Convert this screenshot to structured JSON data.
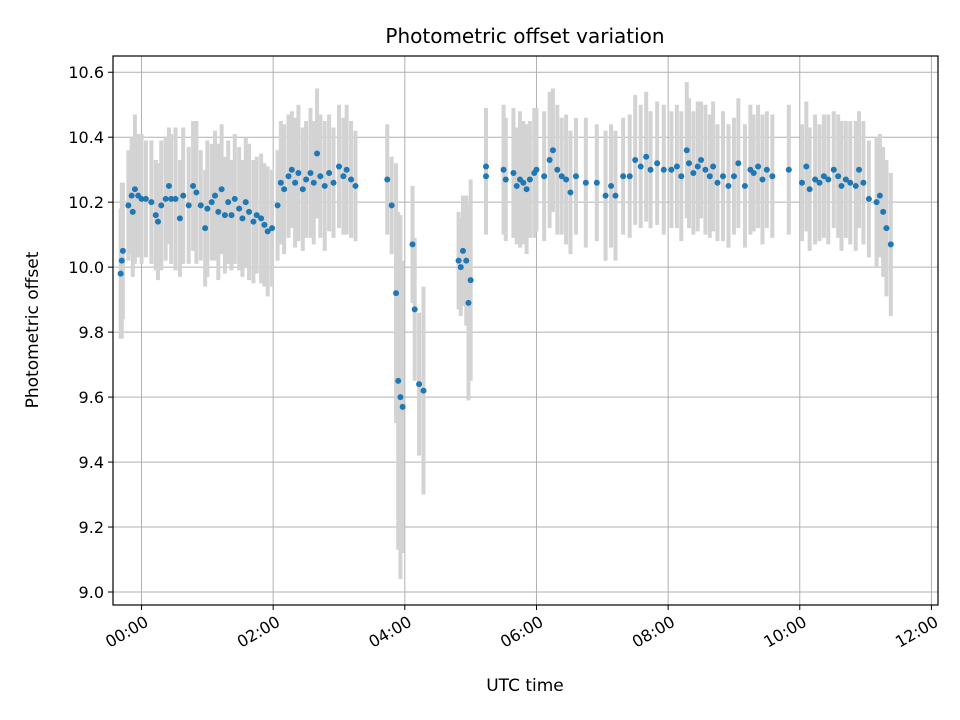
{
  "chart_data": {
    "type": "scatter",
    "title": "Photometric offset variation",
    "xlabel": "UTC time",
    "ylabel": "Photometric offset",
    "x_axis_kind": "time (hours)",
    "xlim": [
      "23:34",
      "12:06"
    ],
    "ylim": [
      8.96,
      10.65
    ],
    "x_ticks": [
      "00:00",
      "02:00",
      "04:00",
      "06:00",
      "08:00",
      "10:00",
      "12:00"
    ],
    "y_ticks": [
      "9.0",
      "9.2",
      "9.4",
      "9.6",
      "9.8",
      "10.0",
      "10.2",
      "10.4",
      "10.6"
    ],
    "grid": true,
    "legend": "none",
    "colors": {
      "points": "#1f77b4",
      "error_bars": "#d3d3d3",
      "grid": "#b0b0b0"
    },
    "series": [
      {
        "points": [
          {
            "x": "23:41",
            "y": 9.98,
            "err": 0.2
          },
          {
            "x": "23:42",
            "y": 10.02,
            "err": 0.24
          },
          {
            "x": "23:43",
            "y": 10.05,
            "err": 0.21
          },
          {
            "x": "23:48",
            "y": 10.19,
            "err": 0.17
          },
          {
            "x": "23:51",
            "y": 10.22,
            "err": 0.18
          },
          {
            "x": "23:52",
            "y": 10.17,
            "err": 0.2
          },
          {
            "x": "23:54",
            "y": 10.24,
            "err": 0.23
          },
          {
            "x": "23:57",
            "y": 10.22,
            "err": 0.19
          },
          {
            "x": "00:00",
            "y": 10.21,
            "err": 0.2
          },
          {
            "x": "00:04",
            "y": 10.21,
            "err": 0.18
          },
          {
            "x": "00:09",
            "y": 10.2,
            "err": 0.19
          },
          {
            "x": "00:13",
            "y": 10.16,
            "err": 0.17
          },
          {
            "x": "00:15",
            "y": 10.14,
            "err": 0.18
          },
          {
            "x": "00:18",
            "y": 10.19,
            "err": 0.2
          },
          {
            "x": "00:22",
            "y": 10.21,
            "err": 0.19
          },
          {
            "x": "00:25",
            "y": 10.25,
            "err": 0.18
          },
          {
            "x": "00:27",
            "y": 10.21,
            "err": 0.2
          },
          {
            "x": "00:31",
            "y": 10.21,
            "err": 0.22
          },
          {
            "x": "00:35",
            "y": 10.15,
            "err": 0.18
          },
          {
            "x": "00:38",
            "y": 10.22,
            "err": 0.21
          },
          {
            "x": "00:43",
            "y": 10.19,
            "err": 0.18
          },
          {
            "x": "00:47",
            "y": 10.25,
            "err": 0.2
          },
          {
            "x": "00:50",
            "y": 10.23,
            "err": 0.22
          },
          {
            "x": "00:54",
            "y": 10.19,
            "err": 0.17
          },
          {
            "x": "00:58",
            "y": 10.12,
            "err": 0.18
          },
          {
            "x": "01:00",
            "y": 10.18,
            "err": 0.21
          },
          {
            "x": "01:04",
            "y": 10.2,
            "err": 0.18
          },
          {
            "x": "01:07",
            "y": 10.22,
            "err": 0.2
          },
          {
            "x": "01:10",
            "y": 10.17,
            "err": 0.21
          },
          {
            "x": "01:13",
            "y": 10.24,
            "err": 0.2
          },
          {
            "x": "01:16",
            "y": 10.16,
            "err": 0.18
          },
          {
            "x": "01:19",
            "y": 10.2,
            "err": 0.19
          },
          {
            "x": "01:22",
            "y": 10.16,
            "err": 0.17
          },
          {
            "x": "01:25",
            "y": 10.21,
            "err": 0.2
          },
          {
            "x": "01:29",
            "y": 10.18,
            "err": 0.19
          },
          {
            "x": "01:32",
            "y": 10.15,
            "err": 0.18
          },
          {
            "x": "01:35",
            "y": 10.2,
            "err": 0.2
          },
          {
            "x": "01:38",
            "y": 10.17,
            "err": 0.21
          },
          {
            "x": "01:42",
            "y": 10.14,
            "err": 0.19
          },
          {
            "x": "01:45",
            "y": 10.16,
            "err": 0.18
          },
          {
            "x": "01:49",
            "y": 10.15,
            "err": 0.2
          },
          {
            "x": "01:52",
            "y": 10.13,
            "err": 0.19
          },
          {
            "x": "01:55",
            "y": 10.11,
            "err": 0.2
          },
          {
            "x": "01:59",
            "y": 10.12,
            "err": 0.18
          },
          {
            "x": "02:04",
            "y": 10.19,
            "err": 0.17
          },
          {
            "x": "02:07",
            "y": 10.26,
            "err": 0.19
          },
          {
            "x": "02:10",
            "y": 10.24,
            "err": 0.2
          },
          {
            "x": "02:14",
            "y": 10.28,
            "err": 0.19
          },
          {
            "x": "02:17",
            "y": 10.3,
            "err": 0.18
          },
          {
            "x": "02:20",
            "y": 10.26,
            "err": 0.2
          },
          {
            "x": "02:23",
            "y": 10.29,
            "err": 0.21
          },
          {
            "x": "02:27",
            "y": 10.24,
            "err": 0.19
          },
          {
            "x": "02:30",
            "y": 10.27,
            "err": 0.18
          },
          {
            "x": "02:34",
            "y": 10.29,
            "err": 0.2
          },
          {
            "x": "02:37",
            "y": 10.26,
            "err": 0.19
          },
          {
            "x": "02:40",
            "y": 10.35,
            "err": 0.2
          },
          {
            "x": "02:43",
            "y": 10.28,
            "err": 0.19
          },
          {
            "x": "02:47",
            "y": 10.25,
            "err": 0.2
          },
          {
            "x": "02:51",
            "y": 10.29,
            "err": 0.18
          },
          {
            "x": "02:55",
            "y": 10.26,
            "err": 0.17
          },
          {
            "x": "03:00",
            "y": 10.31,
            "err": 0.19
          },
          {
            "x": "03:04",
            "y": 10.28,
            "err": 0.18
          },
          {
            "x": "03:07",
            "y": 10.3,
            "err": 0.2
          },
          {
            "x": "03:11",
            "y": 10.27,
            "err": 0.18
          },
          {
            "x": "03:15",
            "y": 10.25,
            "err": 0.17
          },
          {
            "x": "03:44",
            "y": 10.27,
            "err": 0.17
          },
          {
            "x": "03:48",
            "y": 10.19,
            "err": 0.15
          },
          {
            "x": "03:52",
            "y": 9.92,
            "err": 0.4
          },
          {
            "x": "03:54",
            "y": 9.65,
            "err": 0.52
          },
          {
            "x": "03:56",
            "y": 9.6,
            "err": 0.56
          },
          {
            "x": "03:58",
            "y": 9.57,
            "err": 0.45
          },
          {
            "x": "04:07",
            "y": 10.07,
            "err": 0.18
          },
          {
            "x": "04:09",
            "y": 9.87,
            "err": 0.22
          },
          {
            "x": "04:13",
            "y": 9.64,
            "err": 0.22
          },
          {
            "x": "04:17",
            "y": 9.62,
            "err": 0.32
          },
          {
            "x": "04:49",
            "y": 10.02,
            "err": 0.15
          },
          {
            "x": "04:51",
            "y": 10.0,
            "err": 0.15
          },
          {
            "x": "04:53",
            "y": 10.05,
            "err": 0.17
          },
          {
            "x": "04:56",
            "y": 10.02,
            "err": 0.2
          },
          {
            "x": "04:58",
            "y": 9.89,
            "err": 0.3
          },
          {
            "x": "05:00",
            "y": 9.96,
            "err": 0.31
          },
          {
            "x": "05:14",
            "y": 10.31,
            "err": 0.18
          },
          {
            "x": "05:14",
            "y": 10.28,
            "err": 0.18
          },
          {
            "x": "05:30",
            "y": 10.3,
            "err": 0.2
          },
          {
            "x": "05:32",
            "y": 10.27,
            "err": 0.19
          },
          {
            "x": "05:39",
            "y": 10.29,
            "err": 0.2
          },
          {
            "x": "05:42",
            "y": 10.25,
            "err": 0.18
          },
          {
            "x": "05:45",
            "y": 10.27,
            "err": 0.21
          },
          {
            "x": "05:48",
            "y": 10.26,
            "err": 0.19
          },
          {
            "x": "05:51",
            "y": 10.24,
            "err": 0.2
          },
          {
            "x": "05:54",
            "y": 10.27,
            "err": 0.18
          },
          {
            "x": "05:58",
            "y": 10.29,
            "err": 0.2
          },
          {
            "x": "06:00",
            "y": 10.3,
            "err": 0.19
          },
          {
            "x": "06:07",
            "y": 10.28,
            "err": 0.2
          },
          {
            "x": "06:12",
            "y": 10.33,
            "err": 0.21
          },
          {
            "x": "06:15",
            "y": 10.36,
            "err": 0.19
          },
          {
            "x": "06:19",
            "y": 10.3,
            "err": 0.2
          },
          {
            "x": "06:23",
            "y": 10.28,
            "err": 0.18
          },
          {
            "x": "06:27",
            "y": 10.27,
            "err": 0.2
          },
          {
            "x": "06:31",
            "y": 10.23,
            "err": 0.19
          },
          {
            "x": "06:36",
            "y": 10.28,
            "err": 0.18
          },
          {
            "x": "06:45",
            "y": 10.26,
            "err": 0.2
          },
          {
            "x": "06:55",
            "y": 10.26,
            "err": 0.18
          },
          {
            "x": "07:03",
            "y": 10.22,
            "err": 0.2
          },
          {
            "x": "07:08",
            "y": 10.25,
            "err": 0.19
          },
          {
            "x": "07:12",
            "y": 10.22,
            "err": 0.2
          },
          {
            "x": "07:19",
            "y": 10.28,
            "err": 0.18
          },
          {
            "x": "07:25",
            "y": 10.28,
            "err": 0.19
          },
          {
            "x": "07:30",
            "y": 10.33,
            "err": 0.2
          },
          {
            "x": "07:35",
            "y": 10.31,
            "err": 0.19
          },
          {
            "x": "07:40",
            "y": 10.34,
            "err": 0.2
          },
          {
            "x": "07:44",
            "y": 10.3,
            "err": 0.18
          },
          {
            "x": "07:50",
            "y": 10.32,
            "err": 0.19
          },
          {
            "x": "07:56",
            "y": 10.3,
            "err": 0.2
          },
          {
            "x": "08:03",
            "y": 10.3,
            "err": 0.18
          },
          {
            "x": "08:08",
            "y": 10.31,
            "err": 0.19
          },
          {
            "x": "08:12",
            "y": 10.28,
            "err": 0.2
          },
          {
            "x": "08:17",
            "y": 10.36,
            "err": 0.21
          },
          {
            "x": "08:19",
            "y": 10.32,
            "err": 0.2
          },
          {
            "x": "08:23",
            "y": 10.29,
            "err": 0.19
          },
          {
            "x": "08:27",
            "y": 10.31,
            "err": 0.2
          },
          {
            "x": "08:30",
            "y": 10.33,
            "err": 0.18
          },
          {
            "x": "08:34",
            "y": 10.3,
            "err": 0.2
          },
          {
            "x": "08:38",
            "y": 10.28,
            "err": 0.19
          },
          {
            "x": "08:41",
            "y": 10.31,
            "err": 0.2
          },
          {
            "x": "08:45",
            "y": 10.26,
            "err": 0.18
          },
          {
            "x": "08:50",
            "y": 10.28,
            "err": 0.2
          },
          {
            "x": "08:55",
            "y": 10.25,
            "err": 0.19
          },
          {
            "x": "09:00",
            "y": 10.28,
            "err": 0.18
          },
          {
            "x": "09:04",
            "y": 10.32,
            "err": 0.2
          },
          {
            "x": "09:10",
            "y": 10.25,
            "err": 0.19
          },
          {
            "x": "09:15",
            "y": 10.3,
            "err": 0.2
          },
          {
            "x": "09:18",
            "y": 10.29,
            "err": 0.18
          },
          {
            "x": "09:22",
            "y": 10.31,
            "err": 0.19
          },
          {
            "x": "09:26",
            "y": 10.27,
            "err": 0.2
          },
          {
            "x": "09:30",
            "y": 10.3,
            "err": 0.18
          },
          {
            "x": "09:35",
            "y": 10.28,
            "err": 0.19
          },
          {
            "x": "09:50",
            "y": 10.3,
            "err": 0.2
          },
          {
            "x": "10:02",
            "y": 10.26,
            "err": 0.18
          },
          {
            "x": "10:06",
            "y": 10.31,
            "err": 0.2
          },
          {
            "x": "10:09",
            "y": 10.24,
            "err": 0.19
          },
          {
            "x": "10:14",
            "y": 10.27,
            "err": 0.2
          },
          {
            "x": "10:18",
            "y": 10.26,
            "err": 0.18
          },
          {
            "x": "10:22",
            "y": 10.28,
            "err": 0.19
          },
          {
            "x": "10:26",
            "y": 10.27,
            "err": 0.2
          },
          {
            "x": "10:31",
            "y": 10.3,
            "err": 0.18
          },
          {
            "x": "10:35",
            "y": 10.28,
            "err": 0.19
          },
          {
            "x": "10:38",
            "y": 10.25,
            "err": 0.2
          },
          {
            "x": "10:42",
            "y": 10.27,
            "err": 0.18
          },
          {
            "x": "10:46",
            "y": 10.26,
            "err": 0.19
          },
          {
            "x": "10:51",
            "y": 10.25,
            "err": 0.2
          },
          {
            "x": "10:54",
            "y": 10.3,
            "err": 0.18
          },
          {
            "x": "10:58",
            "y": 10.26,
            "err": 0.19
          },
          {
            "x": "11:03",
            "y": 10.21,
            "err": 0.18
          },
          {
            "x": "11:10",
            "y": 10.2,
            "err": 0.2
          },
          {
            "x": "11:13",
            "y": 10.22,
            "err": 0.19
          },
          {
            "x": "11:16",
            "y": 10.17,
            "err": 0.2
          },
          {
            "x": "11:19",
            "y": 10.12,
            "err": 0.21
          },
          {
            "x": "11:23",
            "y": 10.07,
            "err": 0.22
          }
        ]
      }
    ]
  }
}
